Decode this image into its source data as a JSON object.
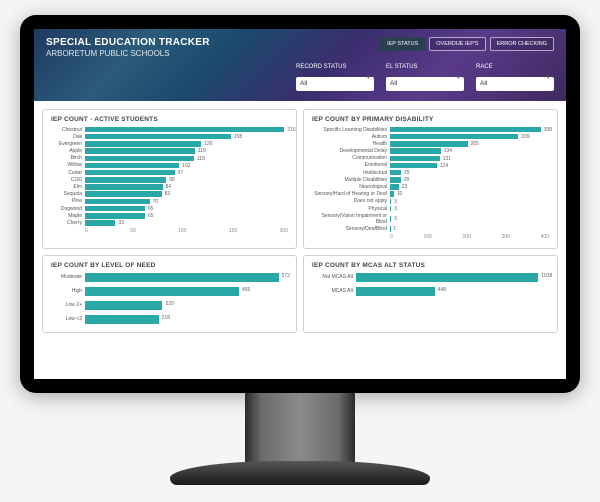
{
  "header": {
    "title": "SPECIAL EDUCATION TRACKER",
    "subtitle": "ARBORETUM PUBLIC SCHOOLS",
    "buttons": {
      "iep_status": "IEP STATUS",
      "overdue": "OVERDUE IEP'S",
      "error": "ERROR CHECKING"
    },
    "filters": {
      "record_status": {
        "label": "RECORD STATUS",
        "value": "All"
      },
      "el_status": {
        "label": "EL STATUS",
        "value": "All"
      },
      "race": {
        "label": "RACE",
        "value": "All"
      }
    }
  },
  "colors": {
    "bar": "#2aa8a8",
    "panel_border": "#d0d0d0",
    "text": "#555555",
    "axis": "#888888"
  },
  "panels": {
    "active": {
      "title": "IEP COUNT - ACTIVE STUDENTS",
      "label_width": 34,
      "max": 220,
      "ticks": [
        "0",
        "50",
        "100",
        "150",
        "200"
      ],
      "rows": [
        {
          "label": "Chestnut",
          "value": 216
        },
        {
          "label": "Oak",
          "value": 158
        },
        {
          "label": "Evergreen",
          "value": 126
        },
        {
          "label": "Apple",
          "value": 119
        },
        {
          "label": "Birch",
          "value": 118
        },
        {
          "label": "Willow",
          "value": 102
        },
        {
          "label": "Cedar",
          "value": 97
        },
        {
          "label": "COD",
          "value": 88
        },
        {
          "label": "Elm",
          "value": 84
        },
        {
          "label": "Sequoia",
          "value": 83
        },
        {
          "label": "Pine",
          "value": 70
        },
        {
          "label": "Dogwood",
          "value": 65
        },
        {
          "label": "Maple",
          "value": 65
        },
        {
          "label": "Cherry",
          "value": 33
        }
      ]
    },
    "disability": {
      "title": "IEP COUNT BY PRIMARY DISABILITY",
      "label_width": 78,
      "max": 420,
      "ticks": [
        "0",
        "100",
        "200",
        "300",
        "400"
      ],
      "rows": [
        {
          "label": "Specific Learning Disabilities",
          "value": 398
        },
        {
          "label": "Autism",
          "value": 339
        },
        {
          "label": "Health",
          "value": 205
        },
        {
          "label": "Developmental Delay",
          "value": 134
        },
        {
          "label": "Communication",
          "value": 131
        },
        {
          "label": "Emotional",
          "value": 124
        },
        {
          "label": "Intellectual",
          "value": 29
        },
        {
          "label": "Multiple Disabilities",
          "value": 28
        },
        {
          "label": "Neurological",
          "value": 23
        },
        {
          "label": "Sensory/Hard of Hearing or Deaf",
          "value": 10
        },
        {
          "label": "Does not apply",
          "value": 3
        },
        {
          "label": "Physical",
          "value": 3
        },
        {
          "label": "Sensory/Vision Impairment or Blind",
          "value": 3
        },
        {
          "label": "Sensory/DeafBlind",
          "value": 1
        }
      ]
    },
    "need": {
      "title": "IEP COUNT BY LEVEL OF NEED",
      "label_width": 34,
      "max": 600,
      "ticks": [],
      "rows": [
        {
          "label": "Moderate",
          "value": 572
        },
        {
          "label": "High",
          "value": 455
        },
        {
          "label": "Low 2+",
          "value": 229
        },
        {
          "label": "Low <2",
          "value": 218
        }
      ]
    },
    "mcas": {
      "title": "IEP COUNT BY MCAS ALT STATUS",
      "label_width": 44,
      "max": 1100,
      "ticks": [],
      "rows": [
        {
          "label": "Not MCAS Alt",
          "value": 1038
        },
        {
          "label": "MCAS Alt",
          "value": 448
        }
      ]
    }
  }
}
